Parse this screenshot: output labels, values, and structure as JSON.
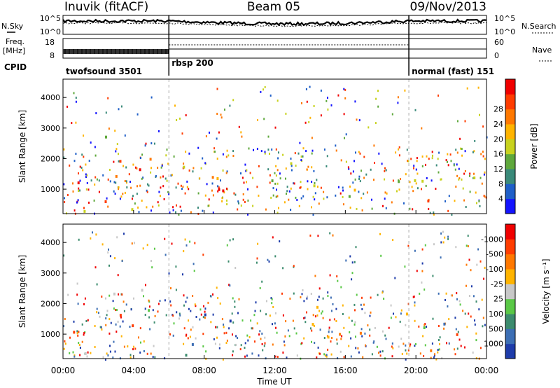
{
  "header": {
    "station": "Inuvik (fitACF)",
    "beam": "Beam 05",
    "date": "09/Nov/2013"
  },
  "strip": {
    "nsky_label": "N.Sky",
    "nsky_top": "10^5",
    "nsky_bottom": "10^0",
    "nsearch_top": "10^5",
    "nsearch_bottom": "10^0",
    "nsearch_label": "N.Search",
    "freq_label": "Freq.",
    "freq_unit": "[MHz]",
    "freq_top": "18",
    "freq_bottom": "8",
    "nave_top": "60",
    "nave_bottom": "0",
    "nave_label": "Nave",
    "cpid_label": "CPID",
    "programs": [
      {
        "name": "twofsound 3501",
        "start_h": 0,
        "end_h": 6
      },
      {
        "name": "rbsp 200",
        "start_h": 6,
        "end_h": 19.6
      },
      {
        "name": "normal (fast) 151",
        "start_h": 19.6,
        "end_h": 24
      }
    ]
  },
  "panels": {
    "ylabel": "Slant Range [km]",
    "xlabel": "Time UT",
    "power_cbar_label": "Power [dB]",
    "velocity_cbar_label": "Velocity [m s⁻¹]"
  },
  "chart_data": [
    {
      "type": "heatmap",
      "name": "power",
      "x_unit": "hours UT",
      "xlim": [
        0,
        24
      ],
      "ylim": [
        200,
        4600
      ],
      "yticks": [
        "1000",
        "2000",
        "3000",
        "4000"
      ],
      "xticks": [
        "00:00",
        "04:00",
        "08:00",
        "12:00",
        "16:00",
        "20:00",
        "00:00"
      ],
      "xtick_hours": [
        0,
        4,
        8,
        12,
        16,
        20,
        24
      ],
      "colorbar": {
        "labels": [
          "4",
          "8",
          "12",
          "16",
          "20",
          "24",
          "28"
        ],
        "colors": [
          "#1414ff",
          "#1f5fc8",
          "#3a8a7a",
          "#5fa83c",
          "#c8d21e",
          "#ffb400",
          "#ff7800",
          "#ff3c00",
          "#f00000"
        ]
      },
      "regions": [
        {
          "t0": 0.0,
          "t1": 4.0,
          "r0": 600,
          "r1": 1800,
          "level": 7
        },
        {
          "t0": 1.5,
          "t1": 4.5,
          "r0": 900,
          "r1": 2100,
          "level": 8
        },
        {
          "t0": 4.0,
          "t1": 6.0,
          "r0": 1200,
          "r1": 2100,
          "level": 6
        },
        {
          "t0": 6.0,
          "t1": 10.0,
          "r0": 700,
          "r1": 2000,
          "level": 5
        },
        {
          "t0": 6.5,
          "t1": 9.5,
          "r0": 700,
          "r1": 1700,
          "level": 8
        },
        {
          "t0": 10.0,
          "t1": 13.5,
          "r0": 900,
          "r1": 1900,
          "level": 3
        },
        {
          "t0": 13.0,
          "t1": 19.5,
          "r0": 800,
          "r1": 2000,
          "level": 4
        },
        {
          "t0": 19.5,
          "t1": 24.0,
          "r0": 700,
          "r1": 1700,
          "level": 4
        },
        {
          "t0": 20.0,
          "t1": 23.5,
          "r0": 600,
          "r1": 1200,
          "level": 8
        },
        {
          "t0": 2.0,
          "t1": 4.0,
          "r0": 2600,
          "r1": 3200,
          "level": 2
        },
        {
          "t0": 0.0,
          "t1": 11.0,
          "r0": 200,
          "r1": 450,
          "level": 5
        }
      ]
    },
    {
      "type": "heatmap",
      "name": "velocity",
      "x_unit": "hours UT",
      "xlim": [
        0,
        24
      ],
      "ylim": [
        200,
        4600
      ],
      "yticks": [
        "1000",
        "2000",
        "3000",
        "4000"
      ],
      "xticks": [
        "00:00",
        "04:00",
        "08:00",
        "12:00",
        "16:00",
        "20:00",
        "00:00"
      ],
      "xtick_hours": [
        0,
        4,
        8,
        12,
        16,
        20,
        24
      ],
      "colorbar": {
        "labels": [
          "1000",
          "500",
          "100",
          "25",
          "-25",
          "-100",
          "-500",
          "-1000"
        ],
        "colors": [
          "#1e3caa",
          "#3c6eb4",
          "#3c8c6e",
          "#5ac846",
          "#c8c8c8",
          "#ffb400",
          "#ff7800",
          "#ff3c00",
          "#f00000"
        ]
      },
      "regions": [
        {
          "t0": 0.0,
          "t1": 4.5,
          "r0": 600,
          "r1": 1800,
          "level": 6
        },
        {
          "t0": 4.0,
          "t1": 6.0,
          "r0": 800,
          "r1": 2000,
          "level": 2
        },
        {
          "t0": 6.0,
          "t1": 9.5,
          "r0": 700,
          "r1": 1900,
          "level": 1
        },
        {
          "t0": 7.0,
          "t1": 10.0,
          "r0": 500,
          "r1": 1100,
          "level": 2
        },
        {
          "t0": 2.0,
          "t1": 6.0,
          "r0": 2000,
          "r1": 2700,
          "level": 4
        },
        {
          "t0": 11.0,
          "t1": 19.5,
          "r0": 800,
          "r1": 2000,
          "level": 6
        },
        {
          "t0": 19.8,
          "t1": 23.8,
          "r0": 600,
          "r1": 1600,
          "level": 2
        },
        {
          "t0": 20.0,
          "t1": 24.0,
          "r0": 500,
          "r1": 1200,
          "level": 6
        },
        {
          "t0": 0.0,
          "t1": 11.0,
          "r0": 200,
          "r1": 450,
          "level": 3
        }
      ]
    }
  ]
}
